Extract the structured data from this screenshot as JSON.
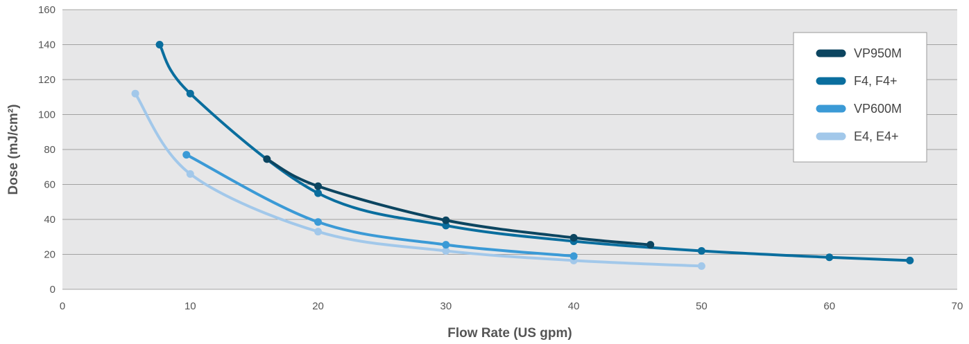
{
  "chart_data": {
    "type": "line",
    "title": "",
    "xlabel": "Flow Rate (US gpm)",
    "ylabel": "Dose (mJ/cm²)",
    "xlim": [
      0,
      70
    ],
    "ylim": [
      0,
      160
    ],
    "x_ticks": [
      0,
      10,
      20,
      30,
      40,
      50,
      60,
      70
    ],
    "y_ticks": [
      0,
      20,
      40,
      60,
      80,
      100,
      120,
      140,
      160
    ],
    "grid": "horizontal",
    "plot_background": "#e7e7e8",
    "legend_position": "top-right",
    "series": [
      {
        "name": "VP950M",
        "color": "#0c4560",
        "points": [
          [
            16,
            74.5
          ],
          [
            20,
            59
          ],
          [
            30,
            39.5
          ],
          [
            40,
            29.5
          ],
          [
            46,
            25.5
          ]
        ]
      },
      {
        "name": "F4, F4+",
        "color": "#0a6e9e",
        "points": [
          [
            7.6,
            140
          ],
          [
            10,
            112
          ],
          [
            20,
            55
          ],
          [
            30,
            36.5
          ],
          [
            40,
            27.5
          ],
          [
            50,
            22
          ],
          [
            60,
            18.3
          ],
          [
            66.3,
            16.5
          ]
        ]
      },
      {
        "name": "VP600M",
        "color": "#3b9ad6",
        "points": [
          [
            9.7,
            77
          ],
          [
            20,
            38.5
          ],
          [
            30,
            25.5
          ],
          [
            40,
            19
          ]
        ]
      },
      {
        "name": "E4, E4+",
        "color": "#a2c8ea",
        "points": [
          [
            5.7,
            112
          ],
          [
            10,
            66
          ],
          [
            20,
            33
          ],
          [
            30,
            22
          ],
          [
            40,
            16.5
          ],
          [
            50,
            13.3
          ]
        ]
      }
    ]
  }
}
